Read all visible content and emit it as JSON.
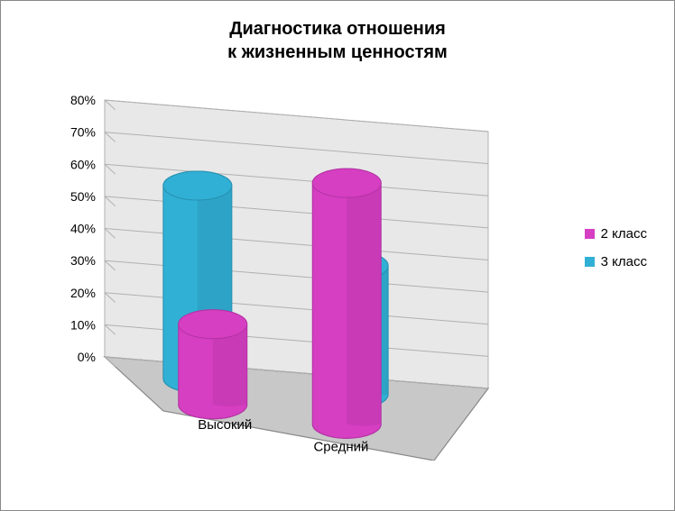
{
  "chart": {
    "type": "3d-cylinder-bar",
    "title_line1": "Диагностика отношения",
    "title_line2": "к жизненным ценностям",
    "title_fontsize": 20,
    "categories": [
      "Высокий",
      "Средний"
    ],
    "series": [
      {
        "name": "2 класс",
        "color": "#d63fc2",
        "color_dark": "#b232a3",
        "values": [
          25,
          75
        ]
      },
      {
        "name": "3 класс",
        "color": "#31b0d5",
        "color_dark": "#278fb0",
        "values": [
          60,
          40
        ]
      }
    ],
    "ylim": [
      0,
      80
    ],
    "ytick_step": 10,
    "tick_labels": [
      "0%",
      "10%",
      "20%",
      "30%",
      "40%",
      "50%",
      "60%",
      "70%",
      "80%"
    ],
    "axis_fontsize": 14,
    "category_fontsize": 15,
    "legend_fontsize": 15,
    "floor_color": "#c8c8c8",
    "floor_edge": "#888888",
    "wall_color": "#e8e8e8",
    "grid_color": "#b0b0b0",
    "background_color": "#ffffff"
  }
}
